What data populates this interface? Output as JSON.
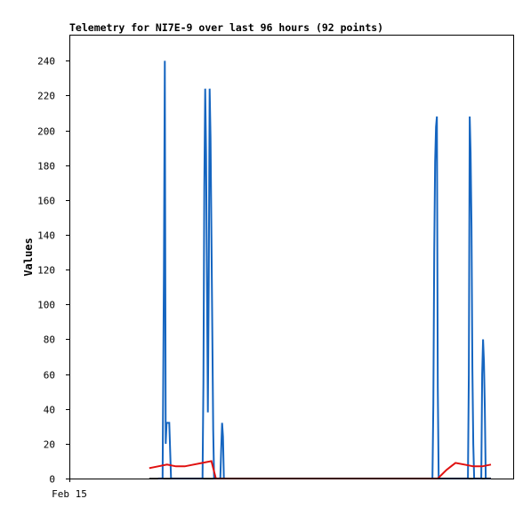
{
  "chart_data": {
    "type": "line",
    "title": "Telemetry for NI7E-9 over last 96 hours (92 points)",
    "xlabel": "",
    "ylabel": "Values",
    "x_tick_labels": [
      "Feb 15"
    ],
    "ylim": [
      0,
      255
    ],
    "y_ticks": [
      0,
      20,
      40,
      60,
      80,
      100,
      120,
      140,
      160,
      180,
      200,
      220,
      240
    ],
    "grid": false,
    "colors": {
      "blue_series": "#1565c0",
      "red_series": "#e01010",
      "black_series": "#000000"
    },
    "series": [
      {
        "color": "#1565c0",
        "points": [
          [
            0.2,
            0
          ],
          [
            0.21,
            0
          ],
          [
            0.213,
            120
          ],
          [
            0.215,
            240
          ],
          [
            0.217,
            20
          ],
          [
            0.219,
            32
          ],
          [
            0.222,
            32
          ],
          [
            0.225,
            32
          ],
          [
            0.227,
            16
          ],
          [
            0.229,
            0
          ],
          [
            0.3,
            0
          ],
          [
            0.302,
            55
          ],
          [
            0.304,
            168
          ],
          [
            0.306,
            224
          ],
          [
            0.308,
            186
          ],
          [
            0.31,
            112
          ],
          [
            0.312,
            38
          ],
          [
            0.314,
            112
          ],
          [
            0.316,
            224
          ],
          [
            0.318,
            196
          ],
          [
            0.32,
            140
          ],
          [
            0.322,
            84
          ],
          [
            0.324,
            28
          ],
          [
            0.326,
            0
          ],
          [
            0.34,
            0
          ],
          [
            0.342,
            17
          ],
          [
            0.344,
            32
          ],
          [
            0.346,
            24
          ],
          [
            0.348,
            0
          ],
          [
            0.818,
            0
          ],
          [
            0.82,
            43
          ],
          [
            0.822,
            130
          ],
          [
            0.824,
            182
          ],
          [
            0.826,
            202
          ],
          [
            0.828,
            208
          ],
          [
            0.83,
            52
          ],
          [
            0.832,
            0
          ],
          [
            0.898,
            0
          ],
          [
            0.9,
            60
          ],
          [
            0.902,
            208
          ],
          [
            0.904,
            187
          ],
          [
            0.906,
            145
          ],
          [
            0.908,
            63
          ],
          [
            0.91,
            20
          ],
          [
            0.912,
            0
          ],
          [
            0.928,
            0
          ],
          [
            0.93,
            60
          ],
          [
            0.932,
            80
          ],
          [
            0.934,
            67
          ],
          [
            0.936,
            40
          ],
          [
            0.938,
            0
          ],
          [
            0.95,
            0
          ]
        ]
      },
      {
        "color": "#e01010",
        "points": [
          [
            0.18,
            6
          ],
          [
            0.2,
            7
          ],
          [
            0.22,
            8
          ],
          [
            0.24,
            7
          ],
          [
            0.26,
            7
          ],
          [
            0.28,
            8
          ],
          [
            0.3,
            9
          ],
          [
            0.32,
            10
          ],
          [
            0.33,
            0
          ],
          [
            0.83,
            0
          ],
          [
            0.85,
            5
          ],
          [
            0.87,
            9
          ],
          [
            0.89,
            8
          ],
          [
            0.91,
            7
          ],
          [
            0.93,
            7
          ],
          [
            0.95,
            8
          ]
        ]
      },
      {
        "color": "#000000",
        "points": [
          [
            0.18,
            0
          ],
          [
            0.95,
            0
          ]
        ]
      }
    ]
  }
}
